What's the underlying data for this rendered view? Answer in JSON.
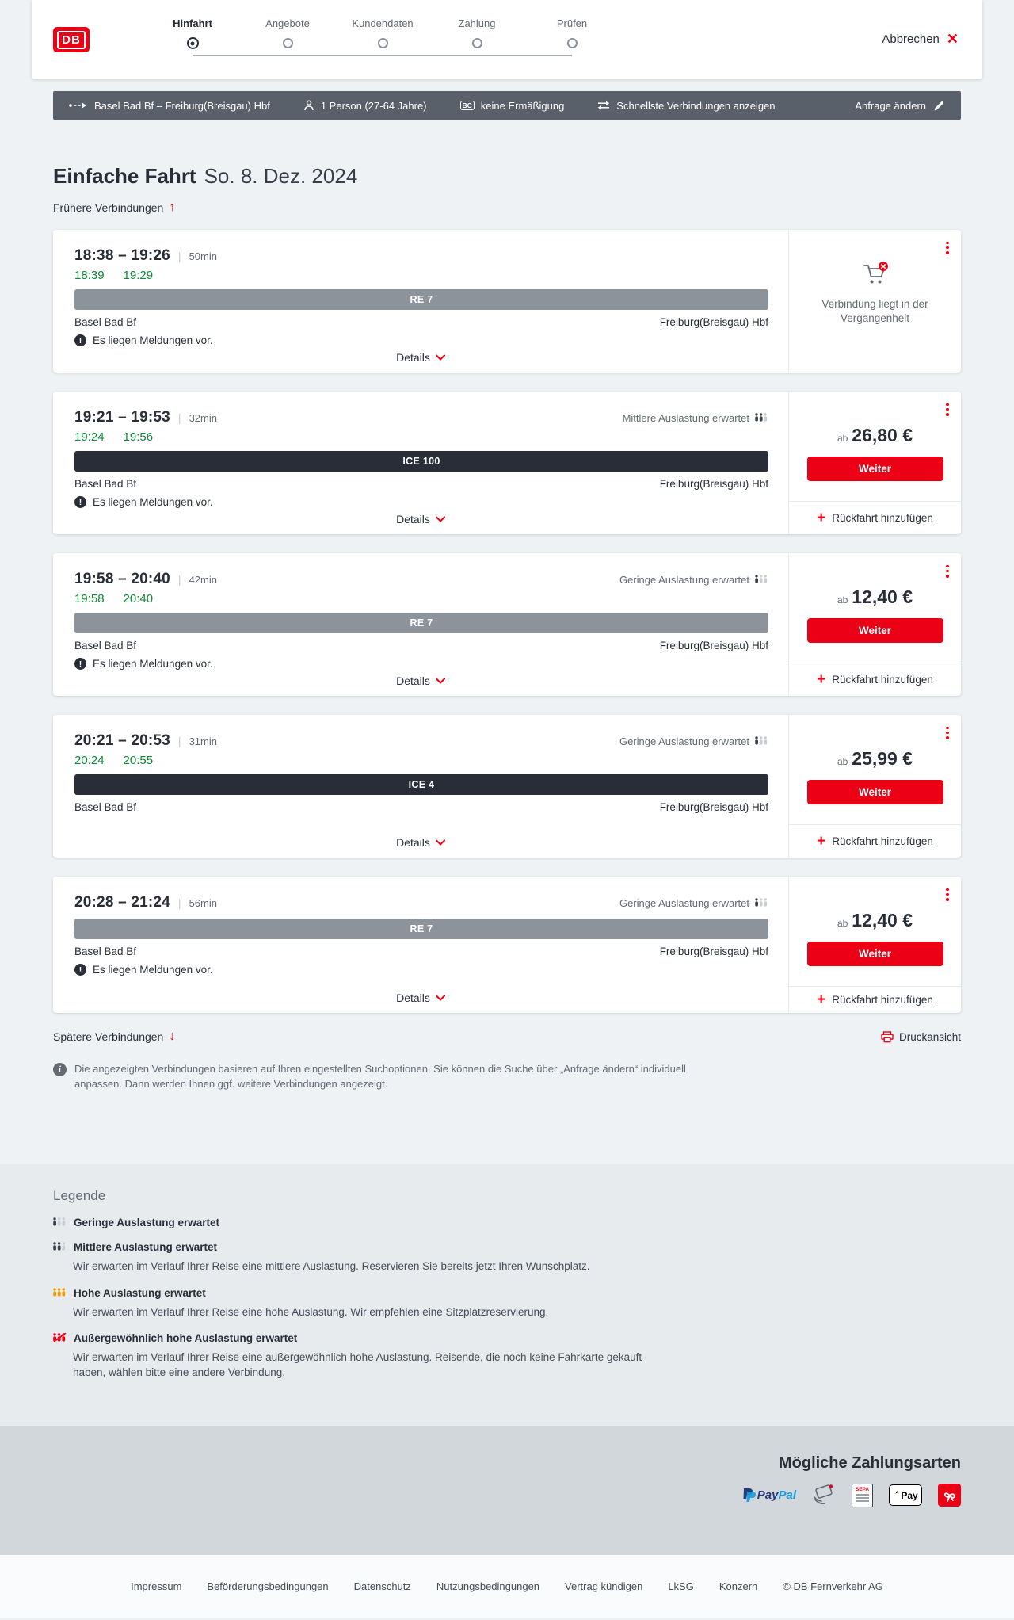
{
  "header": {
    "logo_text": "DB",
    "steps": [
      {
        "label": "Hinfahrt",
        "state": "active"
      },
      {
        "label": "Angebote",
        "state": "todo"
      },
      {
        "label": "Kundendaten",
        "state": "todo"
      },
      {
        "label": "Zahlung",
        "state": "todo"
      },
      {
        "label": "Prüfen",
        "state": "todo"
      }
    ],
    "cancel_label": "Abbrechen"
  },
  "options_bar": {
    "route": "Basel Bad Bf – Freiburg(Breisgau) Hbf",
    "passengers": "1 Person (27-64 Jahre)",
    "bc_badge": "BC",
    "discount": "keine Ermäßigung",
    "speed_option": "Schnellste Verbindungen anzeigen",
    "edit_label": "Anfrage ändern"
  },
  "results": {
    "title": "Einfache Fahrt",
    "date": "So. 8. Dez. 2024",
    "earlier_label": "Frühere Verbindungen",
    "later_label": "Spätere Verbindungen",
    "print_label": "Druckansicht",
    "note": "Die angezeigten Verbindungen basieren auf Ihren eingestellten Suchoptionen. Sie können die Suche über „Anfrage ändern“ individuell anpassen. Dann werden Ihnen ggf. weitere Verbindungen angezeigt."
  },
  "labels": {
    "pipe": "|",
    "details": "Details",
    "weiter": "Weiter",
    "add_return": "Rückfahrt hinzufügen",
    "plus": "+",
    "messages": "Es liegen Meldungen vor.",
    "past": "Verbindung liegt in der Vergangenheit",
    "price_prefix": "ab",
    "warning_glyph": "!",
    "info_glyph": "i"
  },
  "connections": [
    {
      "time": "18:38 – 19:26",
      "duration": "50min",
      "delay_dep": "18:39",
      "delay_arr": "19:29",
      "train": "RE 7",
      "train_type": "re",
      "from": "Basel Bad Bf",
      "to": "Freiburg(Breisgau) Hbf",
      "messages": true,
      "occupancy": "",
      "occupancy_level": 0,
      "price": "",
      "past": true
    },
    {
      "time": "19:21 – 19:53",
      "duration": "32min",
      "delay_dep": "19:24",
      "delay_arr": "19:56",
      "train": "ICE 100",
      "train_type": "ice",
      "from": "Basel Bad Bf",
      "to": "Freiburg(Breisgau) Hbf",
      "messages": true,
      "occupancy": "Mittlere Auslastung erwartet",
      "occupancy_level": 2,
      "price": "26,80 €",
      "past": false
    },
    {
      "time": "19:58 – 20:40",
      "duration": "42min",
      "delay_dep": "19:58",
      "delay_arr": "20:40",
      "train": "RE 7",
      "train_type": "re",
      "from": "Basel Bad Bf",
      "to": "Freiburg(Breisgau) Hbf",
      "messages": true,
      "occupancy": "Geringe Auslastung erwartet",
      "occupancy_level": 1,
      "price": "12,40 €",
      "past": false
    },
    {
      "time": "20:21 – 20:53",
      "duration": "31min",
      "delay_dep": "20:24",
      "delay_arr": "20:55",
      "train": "ICE 4",
      "train_type": "ice",
      "from": "Basel Bad Bf",
      "to": "Freiburg(Breisgau) Hbf",
      "messages": false,
      "occupancy": "Geringe Auslastung erwartet",
      "occupancy_level": 1,
      "price": "25,99 €",
      "past": false
    },
    {
      "time": "20:28 – 21:24",
      "duration": "56min",
      "delay_dep": "",
      "delay_arr": "",
      "train": "RE 7",
      "train_type": "re",
      "from": "Basel Bad Bf",
      "to": "Freiburg(Breisgau) Hbf",
      "messages": true,
      "occupancy": "Geringe Auslastung erwartet",
      "occupancy_level": 1,
      "price": "12,40 €",
      "past": false
    }
  ],
  "legend": {
    "title": "Legende",
    "items": [
      {
        "label": "Geringe Auslastung erwartet",
        "level": 1,
        "color": "#3c414b",
        "desc": ""
      },
      {
        "label": "Mittlere Auslastung erwartet",
        "level": 2,
        "color": "#3c414b",
        "desc": "Wir erwarten im Verlauf Ihrer Reise eine mittlere Auslastung. Reservieren Sie bereits jetzt Ihren Wunschplatz."
      },
      {
        "label": "Hohe Auslastung erwartet",
        "level": 3,
        "color": "#f59b00",
        "desc": "Wir erwarten im Verlauf Ihrer Reise eine hohe Auslastung. Wir empfehlen eine Sitzplatzreservierung."
      },
      {
        "label": "Außergewöhnlich hohe Auslastung erwartet",
        "level": 4,
        "color": "#ec0016",
        "desc": "Wir erwarten im Verlauf Ihrer Reise eine außergewöhnlich hohe Auslastung. Reisende, die noch keine Fahrkarte gekauft haben, wählen bitte eine andere Verbindung."
      }
    ]
  },
  "payment": {
    "title": "Mögliche Zahlungsarten",
    "paypal_p1": "Pay",
    "paypal_p2": "Pal",
    "sepa_label": "SEPA",
    "applepay_label": "Pay",
    "methods": [
      "PayPal",
      "Kreditkarte",
      "SEPA-Lastschrift",
      "Apple Pay",
      "DB Gutschein"
    ]
  },
  "footer": {
    "links": [
      "Impressum",
      "Beförderungsbedingungen",
      "Datenschutz",
      "Nutzungsbedingungen",
      "Vertrag kündigen",
      "LkSG",
      "Konzern"
    ],
    "copyright": "© DB Fernverkehr AG"
  },
  "colors": {
    "accent": "#ec0016",
    "dark": "#282d37",
    "green": "#0e8a39",
    "bar": "#59606a"
  }
}
